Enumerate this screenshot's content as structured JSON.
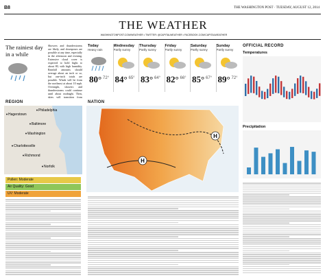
{
  "header": {
    "page": "B8",
    "masthead": "THE WASHINGTON POST · TUESDAY, AUGUST 12, 2014"
  },
  "title": "THE WEATHER",
  "links": "WASHINGTONPOST.COM/WEATHER • TWITTER: @CAPITALWEATHER • FACEBOOK.COM/CAPITALWEATHER",
  "lead": {
    "headline": "The rainiest day in a while",
    "body": "Showers and thunderstorms are likely, and downpours are possible at any time, especially in the afternoon and evening. Extensive cloud cover is expected to hold highs to about 80, with high humidity. Rainfall amounts should average about an inch or so, but one-inch totals are possible. Winds will be from the northeast at about 10 mph. Overnight, showers and thunderstorms could continue until about midnight. Then, skies will transition from cloudy to partly cloudy, with lows in the 60s."
  },
  "forecast": [
    {
      "day": "Today",
      "condition": "Heavy rain",
      "high": "80°",
      "low": "72°"
    },
    {
      "day": "Wednesday",
      "condition": "Partly sunny",
      "high": "84°",
      "low": "65°"
    },
    {
      "day": "Thursday",
      "condition": "Partly sunny",
      "high": "83°",
      "low": "64°"
    },
    {
      "day": "Friday",
      "condition": "Partly sunny",
      "high": "82°",
      "low": "66°"
    },
    {
      "day": "Saturday",
      "condition": "Partly sunny",
      "high": "85°",
      "low": "67°"
    },
    {
      "day": "Sunday",
      "condition": "Partly sunny",
      "high": "89°",
      "low": "72°"
    }
  ],
  "sections": {
    "region": "REGION",
    "nation": "NATION",
    "record": "OFFICIAL RECORD",
    "temperatures": "Temperatures",
    "precipitation": "Precipitation"
  },
  "region": {
    "cities": [
      "Hagerstown",
      "Philadelphia",
      "Baltimore",
      "Washington",
      "Charlottesville",
      "Richmond",
      "Norfolk"
    ],
    "pollen": "Pollen: Moderate",
    "air": "Air Quality: Good",
    "uv": "UV: Moderate"
  },
  "nation": {
    "pressure": [
      "H",
      "H"
    ]
  }
}
